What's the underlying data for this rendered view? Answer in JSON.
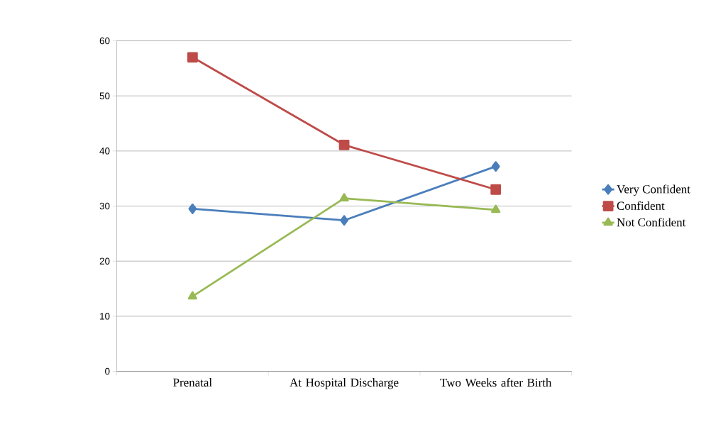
{
  "chart_data": {
    "type": "line",
    "categories": [
      "Prenatal",
      "At Hospital Discharge",
      "Two Weeks after Birth"
    ],
    "series": [
      {
        "name": "Very Confident",
        "color": "#4a7ebb",
        "marker": "diamond",
        "values": [
          29.5,
          27.4,
          37.2
        ]
      },
      {
        "name": "Confident",
        "color": "#be4b48",
        "marker": "square",
        "values": [
          57,
          41.1,
          33
        ]
      },
      {
        "name": "Not Confident",
        "color": "#98b954",
        "marker": "triangle",
        "values": [
          13.6,
          31.4,
          29.3
        ]
      }
    ],
    "ylim": [
      0,
      60
    ],
    "yticks": [
      0,
      10,
      20,
      30,
      40,
      50,
      60
    ],
    "grid": "y",
    "legend": "right",
    "line_style": "solid"
  }
}
